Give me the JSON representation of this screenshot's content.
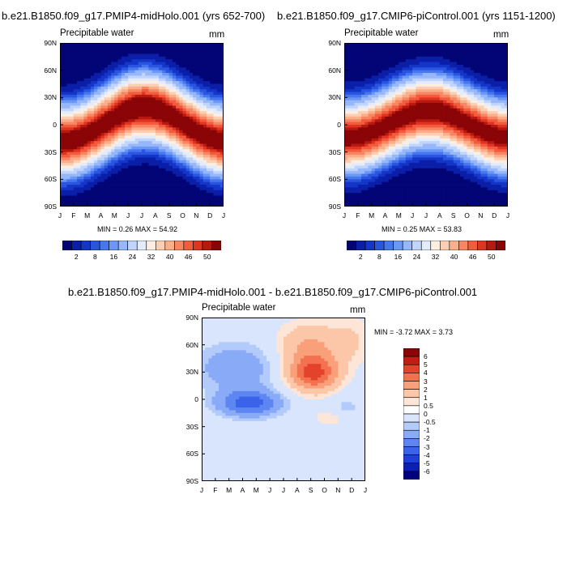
{
  "colors": [
    "#020576",
    "#0a1ea8",
    "#1436c8",
    "#2b55df",
    "#4677ef",
    "#6b97f7",
    "#97b7fb",
    "#c1d4fc",
    "#e3ecfd",
    "#fdeee2",
    "#fccfb3",
    "#fbae8a",
    "#f88663",
    "#f25b3d",
    "#de3421",
    "#b8180f",
    "#8a0507"
  ],
  "panels": [
    {
      "title": "b.e21.B1850.f09_g17.PMIP4-midHolo.001 (yrs 652-700)",
      "label": "Precipitable water",
      "units": "mm",
      "minmax": "MIN =   0.26 MAX =  54.92",
      "yticks": [
        "90N",
        "60N",
        "30N",
        "0",
        "30S",
        "60S",
        "90S"
      ],
      "xticks": [
        "J",
        "F",
        "M",
        "A",
        "M",
        "J",
        "J",
        "A",
        "S",
        "O",
        "N",
        "D",
        "J"
      ]
    },
    {
      "title": "b.e21.B1850.f09_g17.CMIP6-piControl.001 (yrs 1151-1200)",
      "label": "Precipitable water",
      "units": "mm",
      "minmax": "MIN =   0.25 MAX =  53.83",
      "yticks": [
        "90N",
        "60N",
        "30N",
        "0",
        "30S",
        "60S",
        "90S"
      ],
      "xticks": [
        "J",
        "F",
        "M",
        "A",
        "M",
        "J",
        "J",
        "A",
        "S",
        "O",
        "N",
        "D",
        "J"
      ]
    },
    {
      "title": "b.e21.B1850.f09_g17.PMIP4-midHolo.001 - b.e21.B1850.f09_g17.CMIP6-piControl.001",
      "label": "Precipitable water",
      "units": "mm",
      "minmax": "MIN =  -3.72 MAX =   3.73",
      "yticks": [
        "90N",
        "60N",
        "30N",
        "0",
        "30S",
        "60S",
        "90S"
      ],
      "xticks": [
        "J",
        "F",
        "M",
        "A",
        "M",
        "J",
        "J",
        "A",
        "S",
        "O",
        "N",
        "D",
        "J"
      ]
    }
  ],
  "colorbar_abs": [
    "2",
    "8",
    "16",
    "24",
    "32",
    "40",
    "46",
    "50"
  ],
  "colorbar_diff": [
    "6",
    "5",
    "4",
    "3",
    "2",
    "1",
    "0.5",
    "0",
    "-0.5",
    "-1",
    "-2",
    "-3",
    "-4",
    "-5",
    "-6"
  ],
  "chart_data": [
    {
      "type": "heatmap",
      "title": "b.e21.B1850.f09_g17.PMIP4-midHolo.001 (yrs 652-700)",
      "label": "Precipitable water",
      "units": "mm",
      "x": [
        "J",
        "F",
        "M",
        "A",
        "M",
        "J",
        "J",
        "A",
        "S",
        "O",
        "N",
        "D",
        "J"
      ],
      "y": [
        "90N",
        "60N",
        "30N",
        "0",
        "30S",
        "60S",
        "90S"
      ],
      "min": 0.26,
      "max": 54.92,
      "levels": [
        2,
        4,
        6,
        8,
        10,
        12,
        16,
        20,
        24,
        28,
        32,
        36,
        40,
        44,
        46,
        48,
        50
      ]
    },
    {
      "type": "heatmap",
      "title": "b.e21.B1850.f09_g17.CMIP6-piControl.001 (yrs 1151-1200)",
      "label": "Precipitable water",
      "units": "mm",
      "x": [
        "J",
        "F",
        "M",
        "A",
        "M",
        "J",
        "J",
        "A",
        "S",
        "O",
        "N",
        "D",
        "J"
      ],
      "y": [
        "90N",
        "60N",
        "30N",
        "0",
        "30S",
        "60S",
        "90S"
      ],
      "min": 0.25,
      "max": 53.83,
      "levels": [
        2,
        4,
        6,
        8,
        10,
        12,
        16,
        20,
        24,
        28,
        32,
        36,
        40,
        44,
        46,
        48,
        50
      ]
    },
    {
      "type": "heatmap",
      "title": "b.e21.B1850.f09_g17.PMIP4-midHolo.001 - b.e21.B1850.f09_g17.CMIP6-piControl.001",
      "label": "Precipitable water",
      "units": "mm",
      "x": [
        "J",
        "F",
        "M",
        "A",
        "M",
        "J",
        "J",
        "A",
        "S",
        "O",
        "N",
        "D",
        "J"
      ],
      "y": [
        "90N",
        "60N",
        "30N",
        "0",
        "30S",
        "60S",
        "90S"
      ],
      "min": -3.72,
      "max": 3.73,
      "levels": [
        -6,
        -5,
        -4,
        -3,
        -2,
        -1,
        -0.5,
        0,
        0.5,
        1,
        2,
        3,
        4,
        5,
        6
      ]
    }
  ]
}
